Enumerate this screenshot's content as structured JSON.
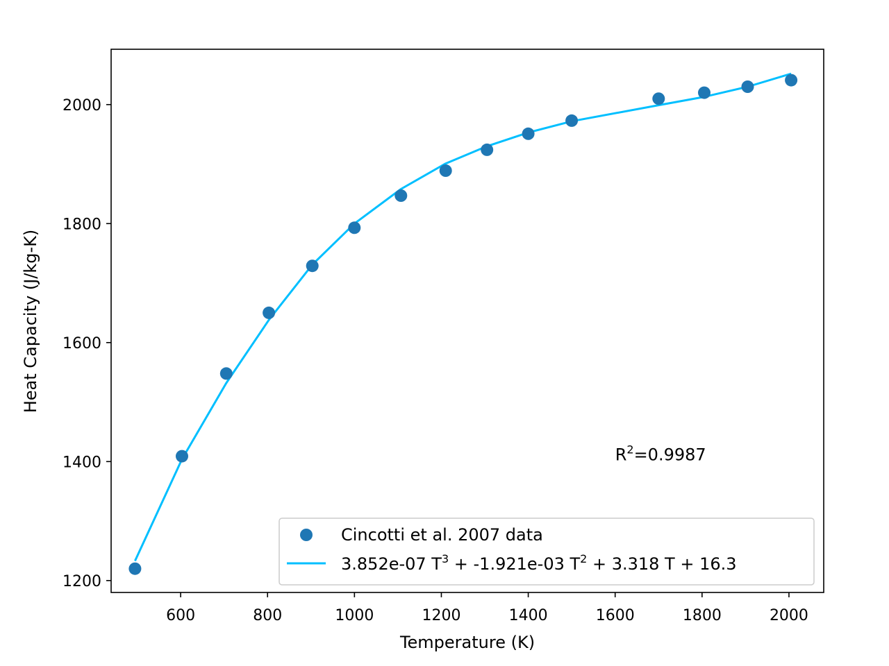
{
  "chart_data": {
    "type": "scatter",
    "xlabel": "Temperature (K)",
    "ylabel": "Heat Capacity (J/kg-K)",
    "xlim": [
      440,
      2080
    ],
    "ylim": [
      1180,
      2093
    ],
    "xticks": [
      600,
      800,
      1000,
      1200,
      1400,
      1600,
      1800,
      2000
    ],
    "yticks": [
      1200,
      1400,
      1600,
      1800,
      2000
    ],
    "grid": false,
    "legend_position": "lower-right",
    "series": [
      {
        "name": "Cincotti et al. 2007 data",
        "kind": "scatter",
        "color": "#1f77b4",
        "x": [
          495,
          603,
          705,
          803,
          903,
          1000,
          1107,
          1210,
          1305,
          1400,
          1500,
          1700,
          1805,
          1905,
          2005
        ],
        "y": [
          1220,
          1409,
          1548,
          1650,
          1729,
          1793,
          1847,
          1889,
          1924,
          1951,
          1973,
          2010,
          2020,
          2030,
          2041
        ]
      },
      {
        "name_parts": {
          "a": "3.852e-07 T",
          "sup1": "3",
          "b": " + -1.921e-03 T",
          "sup2": "2",
          "c": " + 3.318 T +  16.3"
        },
        "kind": "line",
        "color": "#00bfff",
        "x": [
          495,
          603,
          705,
          803,
          903,
          1000,
          1107,
          1210,
          1305,
          1400,
          1500,
          1700,
          1805,
          1905,
          2005
        ],
        "y": [
          1233,
          1404,
          1532,
          1638,
          1731,
          1800,
          1858,
          1901,
          1930,
          1953,
          1972,
          1999,
          2013,
          2030,
          2052
        ]
      }
    ],
    "annotation": {
      "prefix": "R",
      "sup": "2",
      "suffix": "=0.9987",
      "x": 1600,
      "y": 1402
    }
  }
}
